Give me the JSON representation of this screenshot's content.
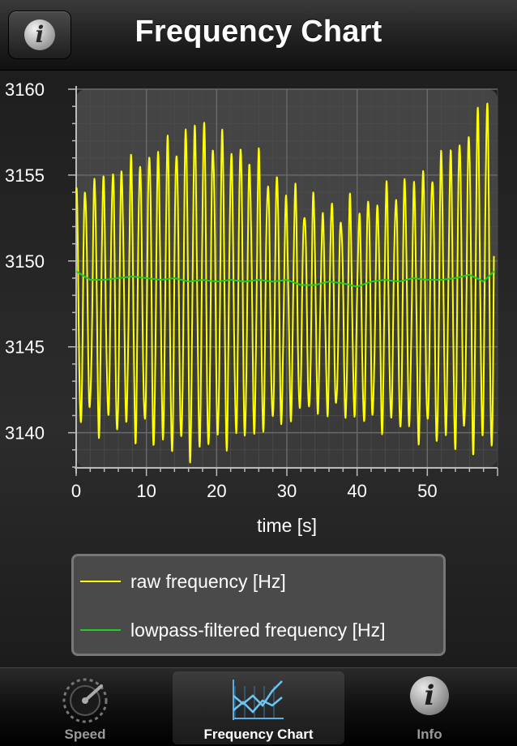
{
  "navbar": {
    "title": "Frequency Chart",
    "info_button_icon": "info-icon"
  },
  "chart_data": {
    "type": "line",
    "xlabel": "time [s]",
    "ylabel": "",
    "xlim": [
      0,
      60
    ],
    "ylim": [
      3138,
      3160
    ],
    "x_ticks": [
      "0",
      "10",
      "20",
      "30",
      "40",
      "50"
    ],
    "y_ticks": [
      "3140",
      "3145",
      "3150",
      "3155",
      "3160"
    ],
    "grid": true,
    "legend_placement": "bottom",
    "series": [
      {
        "name": "raw frequency [Hz]",
        "color": "#ffff00",
        "oscillation_period_s": 1.3,
        "x": [
          0,
          5,
          10,
          15,
          17,
          20,
          25,
          30,
          35,
          40,
          45,
          50,
          55,
          59.5
        ],
        "y_min": [
          3141,
          3140.5,
          3140,
          3139,
          3139,
          3139.5,
          3140,
          3141,
          3141.5,
          3141,
          3140.5,
          3140,
          3139.5,
          3139.5
        ],
        "y_max": [
          3154,
          3155,
          3156,
          3157,
          3158,
          3157,
          3156,
          3154,
          3153,
          3153,
          3154,
          3155,
          3157,
          3159.8
        ]
      },
      {
        "name": "lowpass-filtered frequency [Hz]",
        "color": "#22cc22",
        "x": [
          0,
          2,
          4,
          6,
          8,
          10,
          12,
          14,
          16,
          18,
          20,
          22,
          24,
          26,
          28,
          30,
          32,
          34,
          36,
          38,
          40,
          42,
          44,
          46,
          48,
          50,
          52,
          54,
          56,
          58,
          59.5
        ],
        "y": [
          3149.4,
          3148.9,
          3148.9,
          3149.0,
          3149.1,
          3149.0,
          3148.9,
          3149.0,
          3148.8,
          3148.9,
          3148.8,
          3148.9,
          3148.8,
          3148.9,
          3148.8,
          3148.9,
          3148.6,
          3148.6,
          3148.8,
          3148.7,
          3148.5,
          3148.8,
          3148.9,
          3148.8,
          3149.0,
          3148.9,
          3148.9,
          3149.0,
          3149.2,
          3148.8,
          3149.4
        ]
      }
    ]
  },
  "tabs": [
    {
      "label": "Speed",
      "icon": "speedometer-icon",
      "selected": false,
      "color": "#9a9a9a"
    },
    {
      "label": "Frequency Chart",
      "icon": "chart-icon",
      "selected": true,
      "color": "#ffffff"
    },
    {
      "label": "Info",
      "icon": "info-icon",
      "selected": false,
      "color": "#9a9a9a"
    }
  ]
}
